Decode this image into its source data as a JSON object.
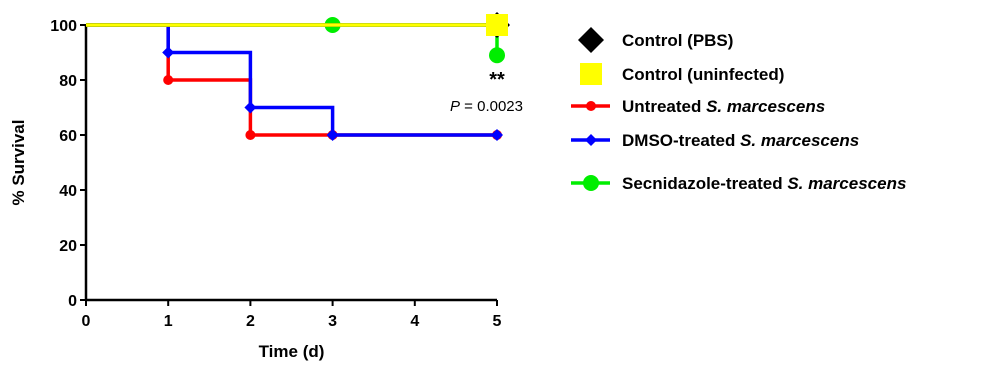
{
  "chart_data": {
    "type": "line",
    "subtype": "kaplan-meier-step",
    "xlabel": "Time (d)",
    "ylabel": "% Survival",
    "xlim": [
      0,
      5
    ],
    "ylim": [
      0,
      100
    ],
    "xticks": [
      "0",
      "1",
      "2",
      "3",
      "4",
      "5"
    ],
    "yticks": [
      "0",
      "20",
      "40",
      "60",
      "80",
      "100"
    ],
    "grid": false,
    "legend_position": "right",
    "series": [
      {
        "name": "Control (PBS)",
        "name_plain": "Control (PBS)",
        "name_italic": "",
        "color": "#000000",
        "marker": "diamond",
        "x": [
          0,
          5
        ],
        "y": [
          100,
          100
        ],
        "markers_x": [
          5
        ],
        "markers_y": [
          100
        ]
      },
      {
        "name": "Control (uninfected)",
        "name_plain": "Control (uninfected)",
        "name_italic": "",
        "color": "#ffff00",
        "marker": "square",
        "x": [
          0,
          5
        ],
        "y": [
          100,
          100
        ],
        "markers_x": [
          5
        ],
        "markers_y": [
          100
        ]
      },
      {
        "name": "Untreated S. marcescens",
        "name_plain": "Untreated ",
        "name_italic": "S. marcescens",
        "color": "#ff0000",
        "marker": "circle-small",
        "x": [
          0,
          1,
          2,
          3,
          5
        ],
        "y": [
          100,
          80,
          60,
          60,
          60
        ],
        "markers_x": [
          1,
          2,
          3,
          5
        ],
        "markers_y": [
          80,
          60,
          60,
          60
        ]
      },
      {
        "name": "DMSO-treated S. marcescens",
        "name_plain": "DMSO-treated ",
        "name_italic": "S. marcescens",
        "color": "#0000ff",
        "marker": "diamond-small",
        "x": [
          0,
          1,
          2,
          3,
          5
        ],
        "y": [
          100,
          90,
          70,
          60,
          60
        ],
        "markers_x": [
          1,
          2,
          3,
          5
        ],
        "markers_y": [
          90,
          70,
          60,
          60
        ]
      },
      {
        "name": "Secnidazole-treated S. marcescens",
        "name_plain": "Secnidazole-treated ",
        "name_italic": "S. marcescens",
        "color": "#00ee00",
        "marker": "circle",
        "x": [
          0,
          5
        ],
        "y": [
          100,
          89
        ],
        "markers_x": [
          3,
          5
        ],
        "markers_y": [
          100,
          89
        ]
      }
    ],
    "annotations": {
      "p_prefix": "P",
      "p_value": " = 0.0023",
      "significance": "**"
    }
  }
}
